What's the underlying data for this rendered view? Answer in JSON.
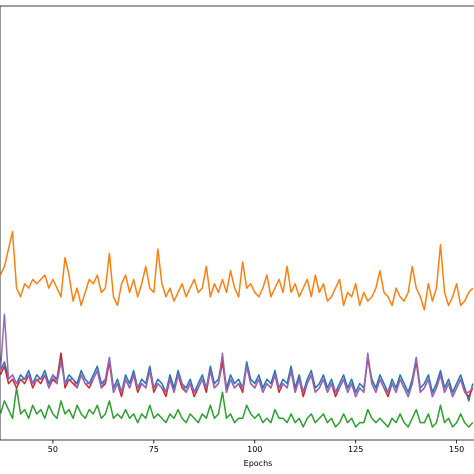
{
  "chart_data": {
    "type": "line",
    "x_label": "Epochs",
    "x": [
      37,
      38,
      39,
      40,
      41,
      42,
      43,
      44,
      45,
      46,
      47,
      48,
      49,
      50,
      51,
      52,
      53,
      54,
      55,
      56,
      57,
      58,
      59,
      60,
      61,
      62,
      63,
      64,
      65,
      66,
      67,
      68,
      69,
      70,
      71,
      72,
      73,
      74,
      75,
      76,
      77,
      78,
      79,
      80,
      81,
      82,
      83,
      84,
      85,
      86,
      87,
      88,
      89,
      90,
      91,
      92,
      93,
      94,
      95,
      96,
      97,
      98,
      99,
      100,
      101,
      102,
      103,
      104,
      105,
      106,
      107,
      108,
      109,
      110,
      111,
      112,
      113,
      114,
      115,
      116,
      117,
      118,
      119,
      120,
      121,
      122,
      123,
      124,
      125,
      126,
      127,
      128,
      129,
      130,
      131,
      132,
      133,
      134,
      135,
      136,
      137,
      138,
      139,
      140,
      141,
      142,
      143,
      144,
      145,
      146,
      147,
      148,
      149,
      150,
      151,
      152,
      153,
      154
    ],
    "xlim": [
      36.9,
      154.3
    ],
    "xticks": [
      50,
      75,
      100,
      125,
      150
    ],
    "ylim": [
      0,
      100
    ],
    "series": [
      {
        "color": "#1f77b4",
        "values": [
          16,
          18,
          14,
          15,
          13,
          15,
          14,
          16,
          13,
          15,
          14,
          16,
          13,
          15,
          14,
          20,
          13,
          15,
          14,
          13,
          16,
          14,
          13,
          15,
          17,
          13,
          14,
          19,
          12,
          14,
          11,
          15,
          13,
          16,
          12,
          14,
          13,
          17,
          12,
          14,
          13,
          11,
          15,
          12,
          16,
          13,
          12,
          14,
          11,
          13,
          15,
          12,
          17,
          13,
          14,
          19,
          12,
          15,
          13,
          14,
          12,
          18,
          14,
          13,
          15,
          12,
          14,
          13,
          16,
          12,
          14,
          13,
          17,
          12,
          15,
          11,
          14,
          16,
          12,
          13,
          15,
          12,
          14,
          11,
          13,
          15,
          12,
          14,
          11,
          13,
          12,
          19,
          14,
          12,
          15,
          13,
          11,
          14,
          12,
          15,
          13,
          11,
          14,
          19,
          12,
          13,
          15,
          11,
          13,
          16,
          12,
          14,
          11,
          13,
          15,
          12,
          9,
          13
        ]
      },
      {
        "color": "#ff7f0e",
        "values": [
          38,
          40,
          44,
          48,
          35,
          33,
          36,
          35,
          37,
          36,
          37,
          38,
          35,
          37,
          35,
          33,
          42,
          38,
          32,
          35,
          31,
          34,
          37,
          36,
          38,
          34,
          35,
          43,
          33,
          31,
          36,
          38,
          34,
          37,
          33,
          36,
          40,
          35,
          34,
          44,
          36,
          33,
          35,
          32,
          34,
          36,
          33,
          35,
          37,
          34,
          35,
          40,
          33,
          36,
          34,
          37,
          34,
          39,
          35,
          33,
          41,
          35,
          36,
          34,
          33,
          35,
          38,
          33,
          35,
          37,
          34,
          40,
          34,
          36,
          33,
          35,
          37,
          33,
          38,
          34,
          36,
          32,
          33,
          35,
          37,
          31,
          34,
          33,
          36,
          31,
          34,
          32,
          33,
          35,
          39,
          34,
          33,
          31,
          35,
          33,
          32,
          34,
          40,
          35,
          33,
          30,
          36,
          32,
          35,
          45,
          34,
          31,
          33,
          36,
          31,
          32,
          34,
          35
        ]
      },
      {
        "color": "#2ca02c",
        "values": [
          6,
          9,
          7,
          5,
          12,
          6,
          7,
          5,
          8,
          6,
          7,
          5,
          8,
          6,
          5,
          9,
          6,
          7,
          5,
          8,
          6,
          5,
          7,
          6,
          8,
          5,
          6,
          9,
          5,
          6,
          5,
          7,
          5,
          6,
          4,
          6,
          5,
          8,
          5,
          6,
          5,
          4,
          6,
          5,
          7,
          5,
          4,
          6,
          5,
          4,
          6,
          5,
          8,
          5,
          6,
          11,
          5,
          6,
          4,
          5,
          5,
          8,
          6,
          5,
          6,
          4,
          5,
          4,
          7,
          5,
          5,
          4,
          6,
          4,
          5,
          3,
          5,
          6,
          4,
          5,
          6,
          4,
          5,
          3,
          4,
          6,
          4,
          5,
          3,
          4,
          4,
          7,
          5,
          4,
          5,
          4,
          3,
          5,
          4,
          6,
          4,
          3,
          5,
          7,
          4,
          4,
          6,
          3,
          4,
          8,
          4,
          5,
          3,
          4,
          6,
          4,
          3,
          4
        ]
      },
      {
        "color": "#d62728",
        "values": [
          15,
          17,
          13,
          14,
          12,
          14,
          13,
          15,
          12,
          14,
          13,
          15,
          12,
          14,
          13,
          20,
          12,
          14,
          13,
          12,
          15,
          13,
          12,
          14,
          16,
          12,
          13,
          18,
          11,
          13,
          10,
          14,
          12,
          15,
          11,
          13,
          12,
          16,
          11,
          13,
          12,
          10,
          14,
          11,
          15,
          12,
          11,
          13,
          10,
          12,
          14,
          11,
          16,
          12,
          13,
          18,
          11,
          14,
          12,
          13,
          11,
          17,
          13,
          12,
          14,
          11,
          13,
          12,
          15,
          11,
          13,
          12,
          16,
          11,
          14,
          10,
          13,
          15,
          11,
          12,
          14,
          11,
          13,
          10,
          12,
          14,
          11,
          13,
          10,
          12,
          11,
          19,
          13,
          11,
          14,
          12,
          10,
          13,
          11,
          14,
          12,
          10,
          13,
          18,
          11,
          12,
          14,
          10,
          12,
          15,
          11,
          13,
          10,
          12,
          14,
          11,
          10,
          12
        ]
      },
      {
        "color": "#9467bd",
        "values": [
          16,
          29,
          14,
          15,
          13,
          14,
          14,
          15,
          13,
          14,
          14,
          15,
          12,
          15,
          13,
          18,
          13,
          14,
          14,
          12,
          15,
          13,
          13,
          14,
          16,
          12,
          14,
          19,
          11,
          13,
          11,
          14,
          12,
          15,
          12,
          13,
          12,
          16,
          12,
          13,
          12,
          11,
          14,
          11,
          15,
          13,
          11,
          13,
          11,
          12,
          14,
          12,
          16,
          12,
          13,
          20,
          11,
          14,
          12,
          13,
          12,
          17,
          13,
          12,
          14,
          11,
          13,
          12,
          15,
          12,
          13,
          12,
          16,
          11,
          14,
          11,
          13,
          15,
          11,
          12,
          14,
          11,
          13,
          11,
          12,
          14,
          11,
          13,
          10,
          12,
          11,
          20,
          13,
          11,
          14,
          12,
          11,
          13,
          11,
          14,
          12,
          10,
          13,
          19,
          11,
          12,
          14,
          10,
          12,
          15,
          11,
          13,
          10,
          12,
          14,
          11,
          11,
          12
        ]
      }
    ]
  }
}
